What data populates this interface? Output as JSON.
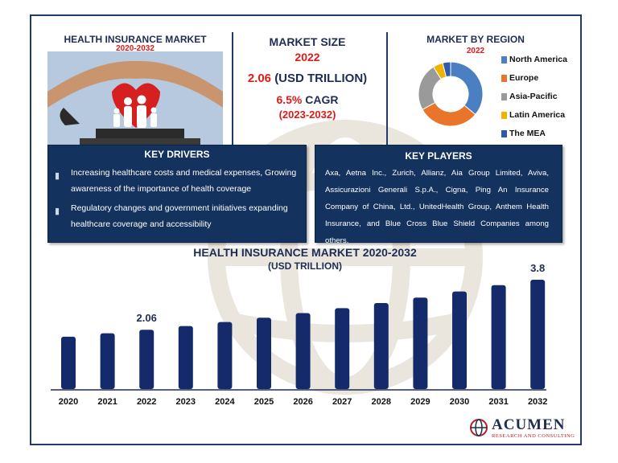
{
  "header": {
    "title": "HEALTH INSURANCE MARKET",
    "years": "2020-2032"
  },
  "market_size": {
    "label": "MARKET SIZE",
    "year": "2022",
    "value": "2.06",
    "unit": "(USD TRILLION)",
    "cagr_value": "6.5%",
    "cagr_label": "CAGR",
    "cagr_period": "(2023-2032)"
  },
  "region": {
    "title": "MARKET BY REGION",
    "year": "2022",
    "legend": [
      {
        "label": "North America",
        "color": "#4a7fc1"
      },
      {
        "label": "Europe",
        "color": "#e8752a"
      },
      {
        "label": "Asia-Pacific",
        "color": "#9a9a9a"
      },
      {
        "label": "Latin America",
        "color": "#f0b400"
      },
      {
        "label": "The MEA",
        "color": "#2f5aa8"
      }
    ]
  },
  "drivers": {
    "title": "KEY DRIVERS",
    "items": [
      "Increasing healthcare costs and medical expenses, Growing awareness of the importance of health coverage",
      "Regulatory changes and government initiatives expanding healthcare coverage and accessibility"
    ]
  },
  "players": {
    "title": "KEY PLAYERS",
    "text": "Axa, Aetna Inc., Zurich, Allianz, Aia Group Limited, Aviva, Assicurazioni Generali S.p.A., Cigna, Ping An Insurance Company of China, Ltd., UnitedHealth Group, Anthem Health Insurance, and Blue Cross Blue Shield Companies among others."
  },
  "chart": {
    "title": "HEALTH INSURANCE MARKET 2020-2032",
    "subtitle": "(USD TRILLION)"
  },
  "logo": {
    "name": "ACUMEN",
    "tagline": "RESEARCH AND CONSULTING"
  },
  "colors": {
    "navy": "#13325e",
    "bar": "#142a6b",
    "accent_red": "#e01a1a"
  },
  "chart_data": [
    {
      "type": "pie",
      "title": "MARKET BY REGION",
      "categories": [
        "North America",
        "Europe",
        "Asia-Pacific",
        "Latin America",
        "The MEA"
      ],
      "values": [
        36,
        31,
        24,
        5,
        4
      ]
    },
    {
      "type": "bar",
      "title": "HEALTH INSURANCE MARKET 2020-2032",
      "subtitle": "(USD TRILLION)",
      "categories": [
        "2020",
        "2021",
        "2022",
        "2023",
        "2024",
        "2025",
        "2026",
        "2027",
        "2028",
        "2029",
        "2030",
        "2031",
        "2032"
      ],
      "values": [
        1.82,
        1.94,
        2.06,
        2.19,
        2.33,
        2.48,
        2.64,
        2.81,
        2.99,
        3.18,
        3.39,
        3.61,
        3.8
      ],
      "data_labels": {
        "2022": "2.06",
        "2032": "3.8"
      }
    }
  ]
}
